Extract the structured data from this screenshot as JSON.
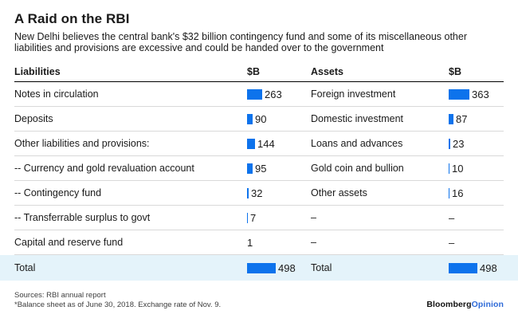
{
  "title": "A Raid on the RBI",
  "subtitle": "New Delhi believes the central bank's $32 billion contingency fund and some of its miscellaneous other liabilities and provisions are excessive and could be handed over to the government",
  "table": {
    "headers": {
      "liabilities": "Liabilities",
      "liabilities_unit": "$B",
      "assets": "Assets",
      "assets_unit": "$B"
    },
    "rows": [
      {
        "liability": "Notes in circulation",
        "liability_value": 263,
        "asset": "Foreign investment",
        "asset_value": 363
      },
      {
        "liability": "Deposits",
        "liability_value": 90,
        "asset": "Domestic investment",
        "asset_value": 87
      },
      {
        "liability": "Other liabilities and provisions:",
        "liability_value": 144,
        "asset": "Loans and advances",
        "asset_value": 23
      },
      {
        "liability": "-- Currency and gold revaluation account",
        "liability_value": 95,
        "asset": "Gold coin and bullion",
        "asset_value": 10
      },
      {
        "liability": "-- Contingency fund",
        "liability_value": 32,
        "asset": "Other assets",
        "asset_value": 16
      },
      {
        "liability": "-- Transferrable surplus to govt",
        "liability_value": 7,
        "asset": "–",
        "asset_value": "–"
      },
      {
        "liability": "Capital and reserve fund",
        "liability_value": 1,
        "asset": "–",
        "asset_value": "–"
      }
    ],
    "total": {
      "liability": "Total",
      "liability_value": 498,
      "asset": "Total",
      "asset_value": 498
    }
  },
  "chart_data": {
    "type": "bar",
    "title": "A Raid on the RBI",
    "subtitle": "New Delhi believes the central bank's $32 billion contingency fund and some of its miscellaneous other liabilities and provisions are excessive and could be handed over to the government",
    "unit": "$B",
    "orientation": "horizontal",
    "xlim": [
      0,
      500
    ],
    "series": [
      {
        "name": "Liabilities",
        "categories": [
          "Notes in circulation",
          "Deposits",
          "Other liabilities and provisions:",
          "-- Currency and gold revaluation account",
          "-- Contingency fund",
          "-- Transferrable surplus to govt",
          "Capital and reserve fund",
          "Total"
        ],
        "values": [
          263,
          90,
          144,
          95,
          32,
          7,
          1,
          498
        ]
      },
      {
        "name": "Assets",
        "categories": [
          "Foreign investment",
          "Domestic investment",
          "Loans and advances",
          "Gold coin and bullion",
          "Other assets",
          "Total"
        ],
        "values": [
          363,
          87,
          23,
          10,
          16,
          498
        ]
      }
    ],
    "bar_color": "#0d73ec"
  },
  "footer": {
    "sources": "Sources: RBI annual report",
    "note": "*Balance sheet as of June 30, 2018. Exchange rate of Nov. 9.",
    "brand_black": "Bloomberg",
    "brand_blue": "Opinion"
  },
  "colors": {
    "bar": "#0d73ec",
    "total_row_background": "#e4f3fa",
    "logo_blue": "#2f6bd8"
  }
}
